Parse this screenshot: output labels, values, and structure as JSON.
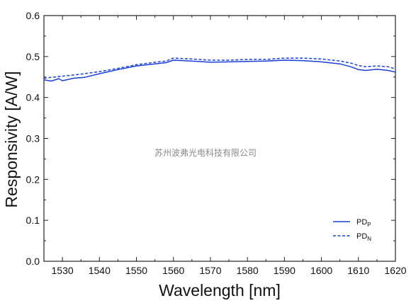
{
  "watermark": "苏州波弗光电科技有限公司",
  "chart_data": {
    "type": "line",
    "title": "",
    "xlabel": "Wavelength  [nm]",
    "ylabel": "Responsivity  [A/W]",
    "xlim": [
      1525,
      1620
    ],
    "ylim": [
      0.0,
      0.6
    ],
    "xticks": [
      1530,
      1540,
      1550,
      1560,
      1570,
      1580,
      1590,
      1600,
      1610,
      1620
    ],
    "yticks": [
      0.0,
      0.1,
      0.2,
      0.3,
      0.4,
      0.5,
      0.6
    ],
    "grid": false,
    "legend": {
      "position": "bottom-right"
    },
    "series": [
      {
        "name": "PD",
        "subscript": "P",
        "style": "solid",
        "color": "#1a3fd8",
        "x": [
          1525,
          1527,
          1529,
          1530,
          1533,
          1536,
          1540,
          1545,
          1550,
          1555,
          1558,
          1560,
          1565,
          1570,
          1575,
          1580,
          1585,
          1590,
          1595,
          1600,
          1605,
          1608,
          1610,
          1612,
          1615,
          1618,
          1620
        ],
        "y": [
          0.443,
          0.44,
          0.446,
          0.441,
          0.447,
          0.449,
          0.458,
          0.468,
          0.477,
          0.482,
          0.485,
          0.491,
          0.489,
          0.486,
          0.487,
          0.488,
          0.489,
          0.491,
          0.49,
          0.487,
          0.482,
          0.475,
          0.468,
          0.466,
          0.469,
          0.466,
          0.462
        ]
      },
      {
        "name": "PD",
        "subscript": "N",
        "style": "dashed",
        "color": "#1a3fd8",
        "x": [
          1525,
          1527,
          1530,
          1535,
          1540,
          1545,
          1550,
          1555,
          1558,
          1560,
          1565,
          1570,
          1575,
          1580,
          1585,
          1590,
          1595,
          1600,
          1605,
          1608,
          1610,
          1612,
          1615,
          1618,
          1620
        ],
        "y": [
          0.447,
          0.449,
          0.452,
          0.457,
          0.463,
          0.471,
          0.48,
          0.486,
          0.489,
          0.496,
          0.494,
          0.491,
          0.491,
          0.493,
          0.493,
          0.496,
          0.496,
          0.494,
          0.489,
          0.484,
          0.478,
          0.475,
          0.477,
          0.475,
          0.47
        ]
      }
    ]
  }
}
